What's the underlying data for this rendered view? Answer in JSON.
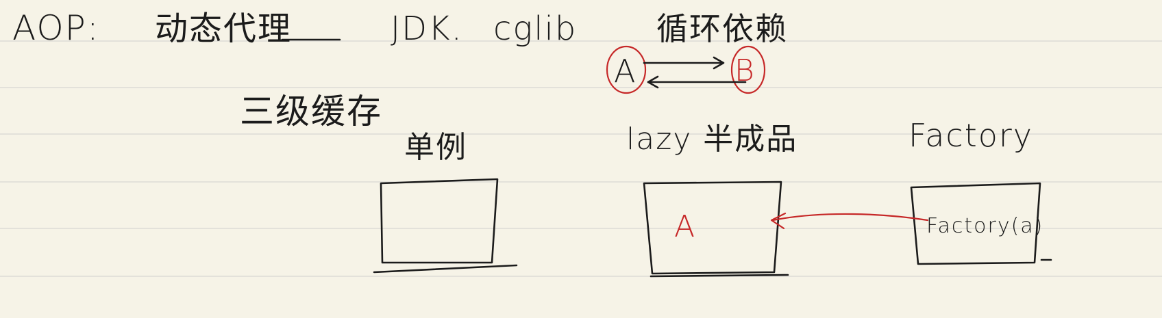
{
  "header": {
    "aop": "AOP:",
    "dynamic_proxy": "动态代理",
    "jdk": "JDK.",
    "cglib": "cglib",
    "circular_dependency": "循环依赖"
  },
  "dependency": {
    "node_a": "A",
    "node_b": "B"
  },
  "three_level_cache": {
    "title": "三级缓存",
    "singleton_label": "单例",
    "lazy_label": "lazy 半成品",
    "factory_label": "Factory",
    "lazy_box_content": "A",
    "factory_box_content": "Factory(a)"
  },
  "colors": {
    "paper": "#f6f3e7",
    "ink": "#1b1b1b",
    "red": "#c62828",
    "rule": "#d8d6d2"
  }
}
